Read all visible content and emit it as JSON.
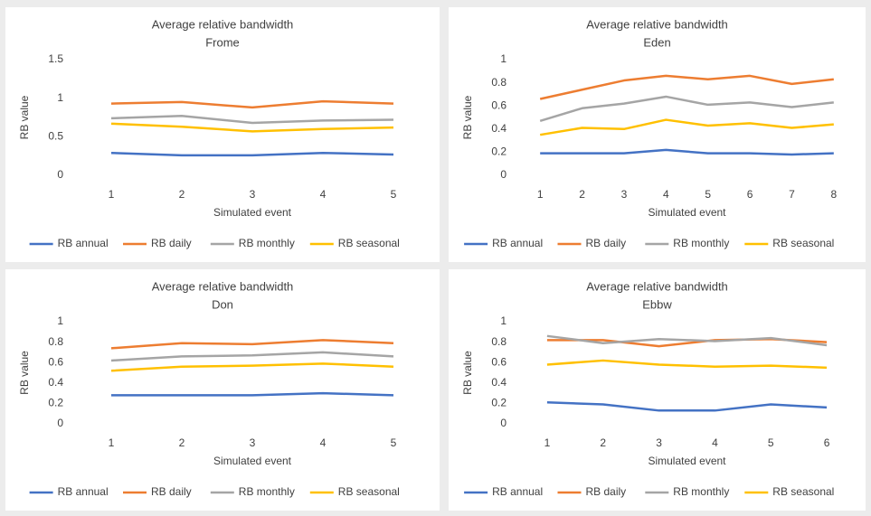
{
  "chart_data": [
    {
      "type": "line",
      "title": "Average relative bandwidth",
      "subtitle": "Frome",
      "x_label": "Simulated event",
      "y_label": "RB value",
      "categories": [
        "1",
        "2",
        "3",
        "4",
        "5"
      ],
      "ylim": [
        0,
        1.5
      ],
      "yticks": [
        0,
        0.5,
        1,
        1.5
      ],
      "legend": "bottom",
      "series": [
        {
          "name": "RB annual",
          "color": "#4472c4",
          "values": [
            0.29,
            0.26,
            0.26,
            0.29,
            0.27
          ]
        },
        {
          "name": "RB daily",
          "color": "#ed7d31",
          "values": [
            0.93,
            0.95,
            0.88,
            0.96,
            0.93
          ]
        },
        {
          "name": "RB monthly",
          "color": "#a5a5a5",
          "values": [
            0.74,
            0.77,
            0.68,
            0.71,
            0.72
          ]
        },
        {
          "name": "RB seasonal",
          "color": "#ffc000",
          "values": [
            0.67,
            0.63,
            0.57,
            0.6,
            0.62
          ]
        }
      ]
    },
    {
      "type": "line",
      "title": "Average relative bandwidth",
      "subtitle": "Eden",
      "x_label": "Simulated event",
      "y_label": "RB value",
      "categories": [
        "1",
        "2",
        "3",
        "4",
        "5",
        "6",
        "7",
        "8"
      ],
      "ylim": [
        0,
        1
      ],
      "yticks": [
        0,
        0.2,
        0.4,
        0.6,
        0.8,
        1
      ],
      "legend": "bottom",
      "series": [
        {
          "name": "RB annual",
          "color": "#4472c4",
          "values": [
            0.19,
            0.19,
            0.19,
            0.22,
            0.19,
            0.19,
            0.18,
            0.19
          ]
        },
        {
          "name": "RB daily",
          "color": "#ed7d31",
          "values": [
            0.66,
            0.74,
            0.82,
            0.86,
            0.83,
            0.86,
            0.79,
            0.83
          ]
        },
        {
          "name": "RB monthly",
          "color": "#a5a5a5",
          "values": [
            0.47,
            0.58,
            0.62,
            0.68,
            0.61,
            0.63,
            0.59,
            0.63
          ]
        },
        {
          "name": "RB seasonal",
          "color": "#ffc000",
          "values": [
            0.35,
            0.41,
            0.4,
            0.48,
            0.43,
            0.45,
            0.41,
            0.44
          ]
        }
      ]
    },
    {
      "type": "line",
      "title": "Average relative bandwidth",
      "subtitle": "Don",
      "x_label": "Simulated event",
      "y_label": "RB value",
      "categories": [
        "1",
        "2",
        "3",
        "4",
        "5"
      ],
      "ylim": [
        0,
        1
      ],
      "yticks": [
        0,
        0.2,
        0.4,
        0.6,
        0.8,
        1
      ],
      "legend": "bottom",
      "series": [
        {
          "name": "RB annual",
          "color": "#4472c4",
          "values": [
            0.28,
            0.28,
            0.28,
            0.3,
            0.28
          ]
        },
        {
          "name": "RB daily",
          "color": "#ed7d31",
          "values": [
            0.74,
            0.79,
            0.78,
            0.82,
            0.79
          ]
        },
        {
          "name": "RB monthly",
          "color": "#a5a5a5",
          "values": [
            0.62,
            0.66,
            0.67,
            0.7,
            0.66
          ]
        },
        {
          "name": "RB seasonal",
          "color": "#ffc000",
          "values": [
            0.52,
            0.56,
            0.57,
            0.59,
            0.56
          ]
        }
      ]
    },
    {
      "type": "line",
      "title": "Average relative bandwidth",
      "subtitle": "Ebbw",
      "x_label": "Simulated event",
      "y_label": "RB value",
      "categories": [
        "1",
        "2",
        "3",
        "4",
        "5",
        "6"
      ],
      "ylim": [
        0,
        1
      ],
      "yticks": [
        0,
        0.2,
        0.4,
        0.6,
        0.8,
        1
      ],
      "legend": "bottom",
      "series": [
        {
          "name": "RB annual",
          "color": "#4472c4",
          "values": [
            0.21,
            0.19,
            0.13,
            0.13,
            0.19,
            0.16
          ]
        },
        {
          "name": "RB daily",
          "color": "#ed7d31",
          "values": [
            0.82,
            0.82,
            0.76,
            0.82,
            0.83,
            0.8
          ]
        },
        {
          "name": "RB monthly",
          "color": "#a5a5a5",
          "values": [
            0.86,
            0.79,
            0.83,
            0.81,
            0.84,
            0.77
          ]
        },
        {
          "name": "RB seasonal",
          "color": "#ffc000",
          "values": [
            0.58,
            0.62,
            0.58,
            0.56,
            0.57,
            0.55
          ]
        }
      ]
    }
  ]
}
